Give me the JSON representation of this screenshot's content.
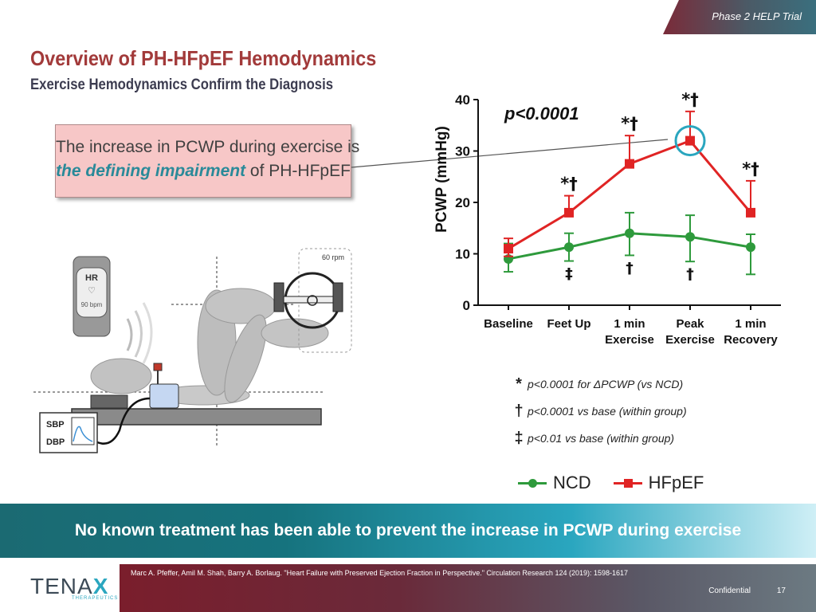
{
  "header": {
    "trial_label": "Phase 2 HELP Trial",
    "title": "Overview of PH-HFpEF Hemodynamics",
    "subtitle": "Exercise Hemodynamics Confirm the Diagnosis"
  },
  "callout": {
    "line1": "The increase in PCWP during exercise is",
    "line2_emphasis": "the defining impairment",
    "line2_rest": " of PH-HFpEF"
  },
  "illustration": {
    "hr_label": "HR",
    "hr_value": "90 bpm",
    "rpm_label": "60 rpm",
    "sbp_label": "SBP",
    "dbp_label": "DBP"
  },
  "chart_data": {
    "type": "line",
    "ylabel": "PCWP (mmHg)",
    "ylim": [
      0,
      40
    ],
    "yticks": [
      0,
      10,
      20,
      30,
      40
    ],
    "categories": [
      {
        "line1": "Baseline",
        "line2": ""
      },
      {
        "line1": "Feet Up",
        "line2": ""
      },
      {
        "line1": "1 min",
        "line2": "Exercise"
      },
      {
        "line1": "Peak",
        "line2": "Exercise"
      },
      {
        "line1": "1 min",
        "line2": "Recovery"
      }
    ],
    "series": [
      {
        "name": "NCD",
        "color": "#2e9a3c",
        "marker": "circle",
        "values": [
          9,
          11.3,
          14,
          13.3,
          11.3
        ],
        "err_upper": [
          3,
          2.7,
          4,
          4.2,
          2.5
        ],
        "err_lower": [
          2.5,
          2.7,
          4.3,
          4.8,
          5.3
        ]
      },
      {
        "name": "HFpEF",
        "color": "#e02424",
        "marker": "square",
        "values": [
          11,
          18,
          27.5,
          32,
          18
        ],
        "err_upper": [
          2,
          3.3,
          5.5,
          5.7,
          6.2
        ],
        "err_lower": [
          1.5,
          0,
          0,
          0,
          0
        ]
      }
    ],
    "p_value": "p<0.0001",
    "hfpef_annotations": [
      "",
      "*†",
      "*†",
      "*†",
      "*†"
    ],
    "ncd_annotations": [
      "",
      "‡",
      "†",
      "†",
      ""
    ],
    "highlight_index": 3
  },
  "footnotes": [
    {
      "symbol": "*",
      "text": "p<0.0001 for ΔPCWP (vs NCD)"
    },
    {
      "symbol": "†",
      "text": "p<0.0001 vs base (within group)"
    },
    {
      "symbol": "‡",
      "text": "p<0.01 vs base (within group)"
    }
  ],
  "legend": {
    "ncd": "NCD",
    "hfpef": "HFpEF",
    "ncd_color": "#2e9a3c",
    "hfpef_color": "#e02424"
  },
  "bottom_message": "No known treatment has been able to prevent the increase in PCWP during exercise",
  "footer": {
    "citation": "Marc A. Pfeffer, Amil M. Shah, Barry A. Borlaug. \"Heart Failure with Preserved Ejection  Fraction in Perspective.\" Circulation Research 124 (2019):  1598-1617",
    "confidential": "Confidential",
    "page_number": "17",
    "logo_prefix": "TENA",
    "logo_x": "X",
    "logo_tagline": "THERAPEUTICS"
  }
}
